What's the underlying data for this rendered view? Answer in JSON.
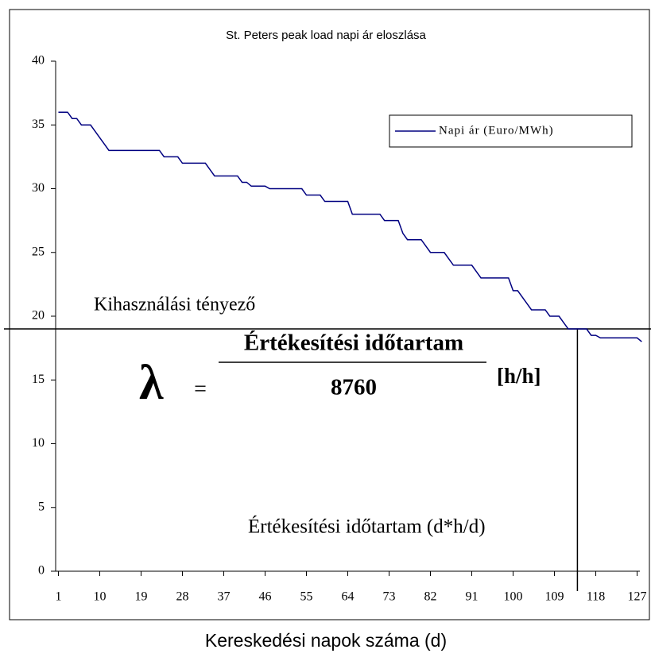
{
  "chart_data": {
    "type": "line",
    "title": "St. Peters peak load napi ár eloszlása",
    "x_label": "Kereskedési napok száma (d)",
    "x": [
      1,
      2,
      3,
      4,
      5,
      6,
      7,
      8,
      9,
      10,
      11,
      12,
      13,
      14,
      15,
      16,
      17,
      18,
      19,
      20,
      21,
      22,
      23,
      24,
      25,
      26,
      27,
      28,
      29,
      30,
      31,
      32,
      33,
      34,
      35,
      36,
      37,
      38,
      39,
      40,
      41,
      42,
      43,
      44,
      45,
      46,
      47,
      48,
      49,
      50,
      51,
      52,
      53,
      54,
      55,
      56,
      57,
      58,
      59,
      60,
      61,
      62,
      63,
      64,
      65,
      66,
      67,
      68,
      69,
      70,
      71,
      72,
      73,
      74,
      75,
      76,
      77,
      78,
      79,
      80,
      81,
      82,
      83,
      84,
      85,
      86,
      87,
      88,
      89,
      90,
      91,
      92,
      93,
      94,
      95,
      96,
      97,
      98,
      99,
      100,
      101,
      102,
      103,
      104,
      105,
      106,
      107,
      108,
      109,
      110,
      111,
      112,
      113,
      114,
      115,
      116,
      117,
      118,
      119,
      120,
      121,
      122,
      123,
      124,
      125,
      126,
      127,
      128
    ],
    "series": [
      {
        "name": "Napi ár (Euro/MWh)",
        "color": "#000080",
        "values": [
          36,
          36,
          36,
          35.5,
          35.5,
          35,
          35,
          35,
          34.5,
          34,
          33.5,
          33,
          33,
          33,
          33,
          33,
          33,
          33,
          33,
          33,
          33,
          33,
          33,
          32.5,
          32.5,
          32.5,
          32.5,
          32,
          32,
          32,
          32,
          32,
          32,
          31.5,
          31,
          31,
          31,
          31,
          31,
          31,
          30.5,
          30.5,
          30.2,
          30.2,
          30.2,
          30.2,
          30,
          30,
          30,
          30,
          30,
          30,
          30,
          30,
          29.5,
          29.5,
          29.5,
          29.5,
          29,
          29,
          29,
          29,
          29,
          29,
          28,
          28,
          28,
          28,
          28,
          28,
          28,
          27.5,
          27.5,
          27.5,
          27.5,
          26.5,
          26,
          26,
          26,
          26,
          25.5,
          25,
          25,
          25,
          25,
          24.5,
          24,
          24,
          24,
          24,
          24,
          23.5,
          23,
          23,
          23,
          23,
          23,
          23,
          23,
          22,
          22,
          21.5,
          21,
          20.5,
          20.5,
          20.5,
          20.5,
          20,
          20,
          20,
          19.5,
          19,
          19,
          19,
          19,
          19,
          18.5,
          18.5,
          18.3,
          18.3,
          18.3,
          18.3,
          18.3,
          18.3,
          18.3,
          18.3,
          18.3,
          18
        ]
      }
    ],
    "xlim": [
      0.4,
      127.6
    ],
    "xticks": [
      1,
      10,
      19,
      28,
      37,
      46,
      55,
      64,
      73,
      82,
      91,
      100,
      109,
      118,
      127
    ],
    "ylim": [
      0,
      40
    ],
    "yticks": [
      0,
      5,
      10,
      15,
      20,
      25,
      30,
      35,
      40
    ],
    "legend": "top-right",
    "annotations": {
      "threshold_label": "Kihasználási tényező",
      "threshold_y": 19,
      "cut_x": 114,
      "lambda": "λ",
      "equals": "=",
      "numerator": "Értékesítési időtartam",
      "denominator": "8760",
      "unit": "[h/h]",
      "duration_label": "Értékesítési időtartam (d*h/d)"
    }
  }
}
